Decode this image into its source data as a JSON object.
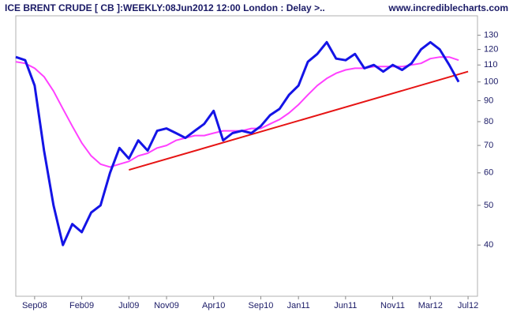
{
  "chart_data": {
    "type": "line",
    "title": "ICE BRENT CRUDE [ CB ]:WEEKLY:08Jun2012 12:00 London : Delay >..",
    "source": "www.incrediblecharts.com",
    "x": [
      "2008-07",
      "2008-08",
      "2008-09",
      "2008-10",
      "2008-11",
      "2008-12",
      "2009-01",
      "2009-02",
      "2009-03",
      "2009-04",
      "2009-05",
      "2009-06",
      "2009-07",
      "2009-08",
      "2009-09",
      "2009-10",
      "2009-11",
      "2009-12",
      "2010-01",
      "2010-02",
      "2010-03",
      "2010-04",
      "2010-05",
      "2010-06",
      "2010-07",
      "2010-08",
      "2010-09",
      "2010-10",
      "2010-11",
      "2010-12",
      "2011-01",
      "2011-02",
      "2011-03",
      "2011-04",
      "2011-05",
      "2011-06",
      "2011-07",
      "2011-08",
      "2011-09",
      "2011-10",
      "2011-11",
      "2011-12",
      "2012-01",
      "2012-02",
      "2012-03",
      "2012-04",
      "2012-05",
      "2012-06"
    ],
    "series": [
      {
        "color": "#1414e6",
        "width": 3,
        "values": [
          115,
          113,
          98,
          68,
          50,
          40,
          45,
          43,
          48,
          50,
          60,
          69,
          65,
          72,
          68,
          76,
          77,
          75,
          73,
          76,
          79,
          85,
          72,
          75,
          76,
          75,
          78,
          83,
          86,
          93,
          98,
          112,
          117,
          125,
          114,
          113,
          117,
          108,
          110,
          106,
          110,
          107,
          111,
          120,
          125,
          120,
          110,
          100
        ]
      },
      {
        "color": "#ff40ff",
        "width": 2,
        "values": [
          112,
          111,
          108,
          103,
          95,
          86,
          78,
          71,
          66,
          63,
          62,
          63,
          64,
          66,
          67,
          69,
          70,
          72,
          73,
          74,
          74,
          75,
          76,
          76,
          76,
          77,
          77,
          79,
          81,
          84,
          88,
          93,
          98,
          102,
          105,
          107,
          108,
          108,
          109,
          109,
          109,
          109,
          110,
          111,
          114,
          115,
          115,
          113
        ]
      }
    ],
    "trendline": {
      "color": "#e61414",
      "x": [
        "2009-07",
        "2012-07"
      ],
      "values": [
        61,
        106
      ]
    },
    "xlim": [
      "2008-07",
      "2012-08"
    ],
    "xticks": [
      {
        "value": "2008-09",
        "label": "Sep08"
      },
      {
        "value": "2009-02",
        "label": "Feb09"
      },
      {
        "value": "2009-07",
        "label": "Jul09"
      },
      {
        "value": "2009-11",
        "label": "Nov09"
      },
      {
        "value": "2010-04",
        "label": "Apr10"
      },
      {
        "value": "2010-09",
        "label": "Sep10"
      },
      {
        "value": "2011-01",
        "label": "Jan11"
      },
      {
        "value": "2011-06",
        "label": "Jun11"
      },
      {
        "value": "2011-11",
        "label": "Nov11"
      },
      {
        "value": "2012-03",
        "label": "Mar12"
      },
      {
        "value": "2012-07",
        "label": "Jul12"
      }
    ],
    "ylim": [
      30,
      145
    ],
    "yticks": [
      40,
      50,
      60,
      70,
      80,
      90,
      100,
      110,
      120,
      130
    ],
    "log_scale": true
  }
}
